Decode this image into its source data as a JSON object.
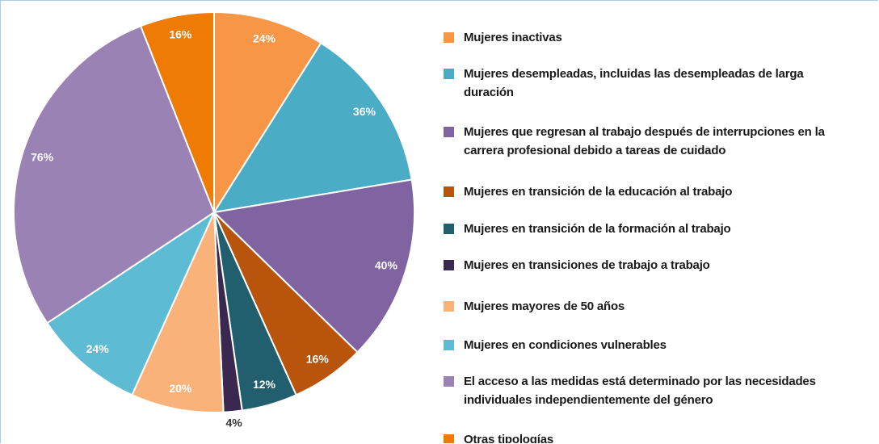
{
  "chart_data": {
    "type": "pie",
    "categories": [
      "Mujeres inactivas",
      "Mujeres desempleadas, incluidas las desempleadas de larga duración",
      "Mujeres que regresan al trabajo después de interrupciones en la carrera profesional debido a tareas de cuidado",
      "Mujeres en transición de la educación al trabajo",
      "Mujeres en transición de la formación al trabajo",
      "Mujeres en transiciones de trabajo a trabajo",
      "Mujeres mayores de 50 años",
      "Mujeres en condiciones vulnerables",
      "El acceso a las medidas está determinado por las necesidades individuales independientemente del género",
      "Otras tipologías"
    ],
    "values": [
      24,
      36,
      40,
      16,
      12,
      4,
      20,
      24,
      76,
      16
    ],
    "value_labels": [
      "24%",
      "36%",
      "40%",
      "16%",
      "12%",
      "4%",
      "20%",
      "24%",
      "76%",
      "16%"
    ],
    "colors": [
      "#f79646",
      "#4bacc6",
      "#8064a2",
      "#b8540c",
      "#215f6e",
      "#3b2850",
      "#f9b37a",
      "#5dbcd3",
      "#9a82b5",
      "#ef7a04"
    ],
    "legend": "right"
  }
}
